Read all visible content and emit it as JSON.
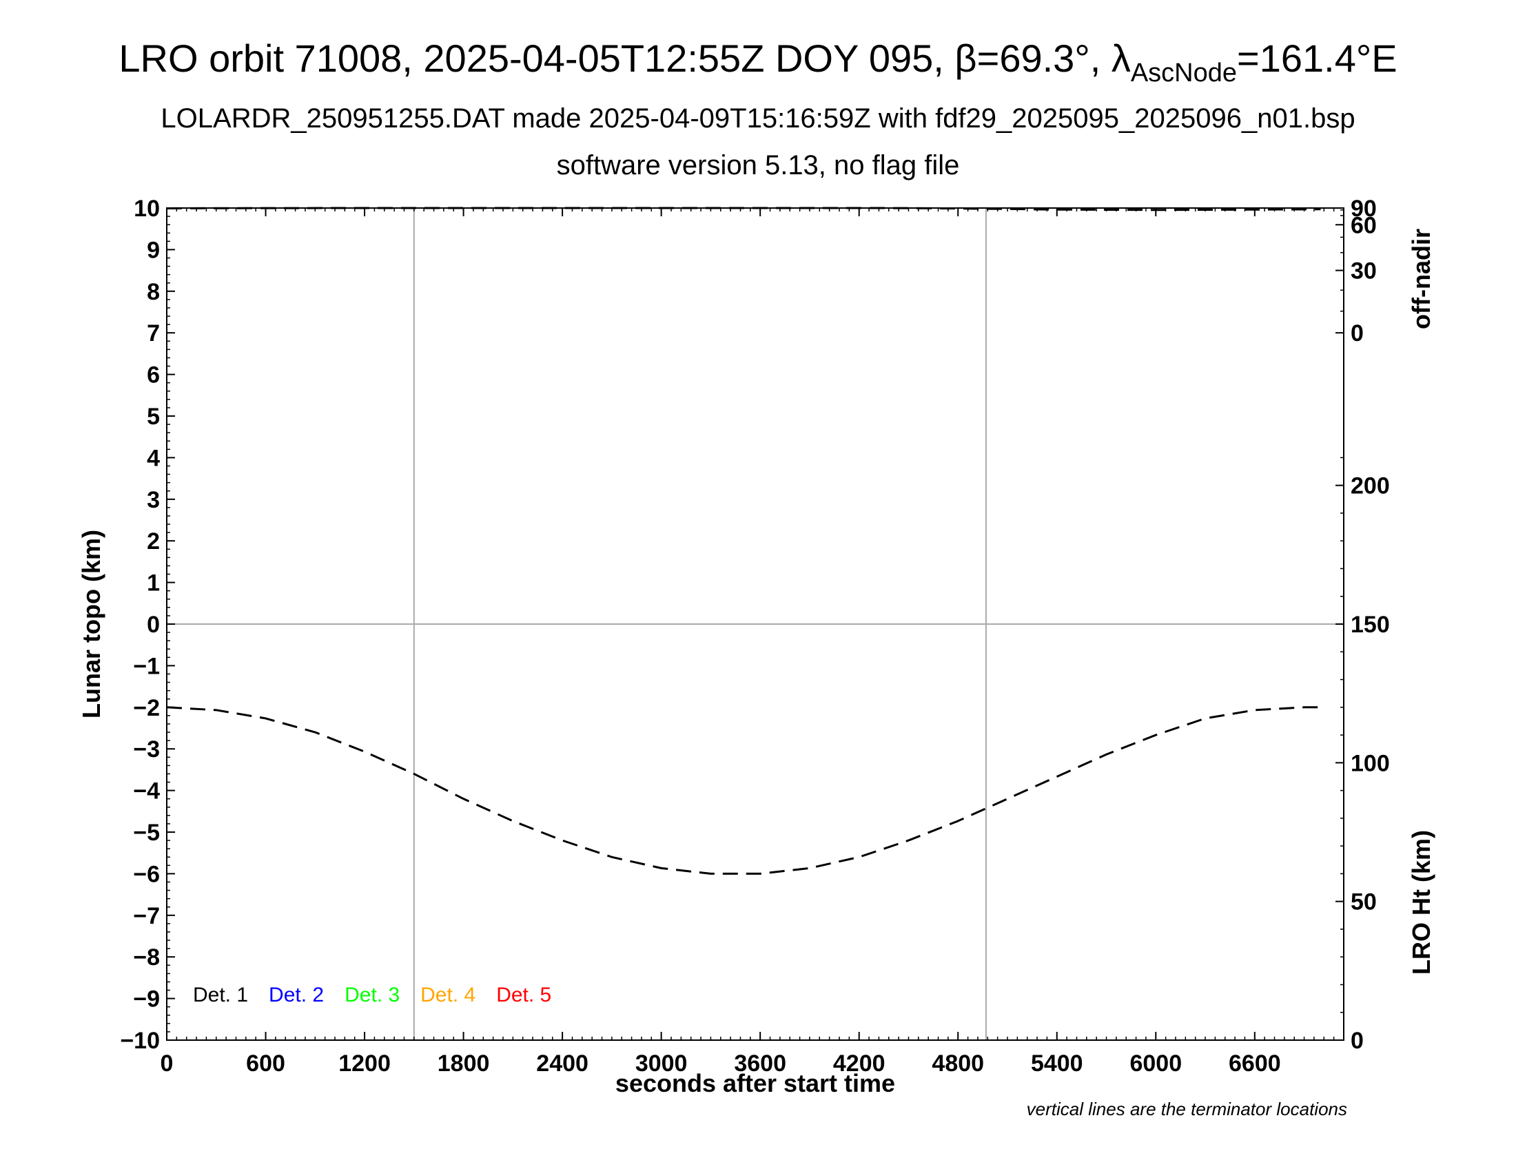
{
  "titles": {
    "line1_main": "LRO orbit 71008, 2025-04-05T12:55Z DOY 095, β=69.3°, λ",
    "line1_sub": "AscNode",
    "line1_tail": "=161.4°E",
    "line2": "LOLARDR_250951255.DAT made 2025-04-09T15:16:59Z with fdf29_2025095_2025096_n01.bsp",
    "line3": "software version 5.13, no flag file"
  },
  "note": "vertical lines are the terminator locations",
  "legend": [
    {
      "label": "Det. 1",
      "color": "#000000"
    },
    {
      "label": "Det. 2",
      "color": "#0000ff"
    },
    {
      "label": "Det. 3",
      "color": "#00ff00"
    },
    {
      "label": "Det. 4",
      "color": "#ffa500"
    },
    {
      "label": "Det. 5",
      "color": "#ff0000"
    }
  ],
  "chart_data": {
    "type": "line",
    "xlabel": "seconds after start time",
    "ylabel_left": "Lunar topo (km)",
    "ylabel_right_top": "off-nadir",
    "ylabel_right_bottom": "LRO Ht (km)",
    "xlim": [
      0,
      7140
    ],
    "ylim": [
      -10,
      10
    ],
    "x_ticks": [
      "0",
      "600",
      "1200",
      "1800",
      "2400",
      "3000",
      "3600",
      "4200",
      "4800",
      "5400",
      "6000",
      "6600"
    ],
    "y_ticks": [
      "10",
      "9",
      "8",
      "7",
      "6",
      "5",
      "4",
      "3",
      "2",
      "1",
      "0",
      "−1",
      "−2",
      "−3",
      "−4",
      "−5",
      "−6",
      "−7",
      "−8",
      "−9",
      "−10"
    ],
    "right_top_ticks": [
      "90",
      "60",
      "30",
      "0"
    ],
    "right_bottom_ticks": [
      "200",
      "150",
      "100",
      "50",
      "0"
    ],
    "terminator_lines_x": [
      1500,
      4970
    ],
    "grid_zero_line": true,
    "lro_height_range_km": [
      0,
      300
    ],
    "off_nadir_range_deg": [
      0,
      90
    ],
    "series": [
      {
        "name": "LRO Ht (km)",
        "style": "dashed",
        "x": [
          0,
          300,
          600,
          900,
          1200,
          1500,
          1800,
          2100,
          2400,
          2700,
          3000,
          3300,
          3600,
          3900,
          4200,
          4500,
          4800,
          5100,
          5400,
          5700,
          6000,
          6300,
          6600,
          6900,
          7000
        ],
        "y": [
          120,
          119,
          116,
          111,
          104,
          96,
          87,
          79,
          72,
          66,
          62,
          60,
          60,
          62,
          66,
          72,
          79,
          87,
          95,
          103,
          110,
          116,
          119,
          120,
          120
        ]
      },
      {
        "name": "off-nadir",
        "style": "dashed",
        "x": [
          0,
          600,
          1200,
          1800,
          2400,
          3000,
          3600,
          4200,
          4500,
          4800,
          5100,
          5400,
          6000,
          6600,
          7000
        ],
        "y": [
          86,
          88,
          89.5,
          90,
          90,
          90,
          90,
          89.5,
          88,
          85,
          83,
          81,
          80,
          81,
          82
        ]
      }
    ]
  }
}
